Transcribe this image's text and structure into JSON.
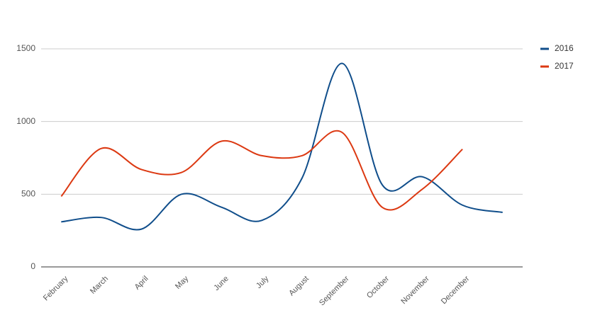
{
  "chart_data": {
    "type": "line",
    "categories": [
      "February",
      "March",
      "April",
      "May",
      "June",
      "July",
      "August",
      "September",
      "October",
      "November",
      "December",
      null
    ],
    "series": [
      {
        "name": "2016",
        "color": "#104e8b",
        "values": [
          310,
          340,
          260,
          500,
          410,
          320,
          610,
          1400,
          565,
          620,
          425,
          375
        ]
      },
      {
        "name": "2017",
        "color": "#dc3912",
        "values": [
          485,
          815,
          670,
          650,
          865,
          765,
          765,
          925,
          410,
          535,
          810,
          null
        ]
      }
    ],
    "ylim": [
      0,
      1500
    ],
    "yticks": [
      0,
      500,
      1000,
      1500
    ],
    "grid": true,
    "smooth": true,
    "legend": "right"
  }
}
